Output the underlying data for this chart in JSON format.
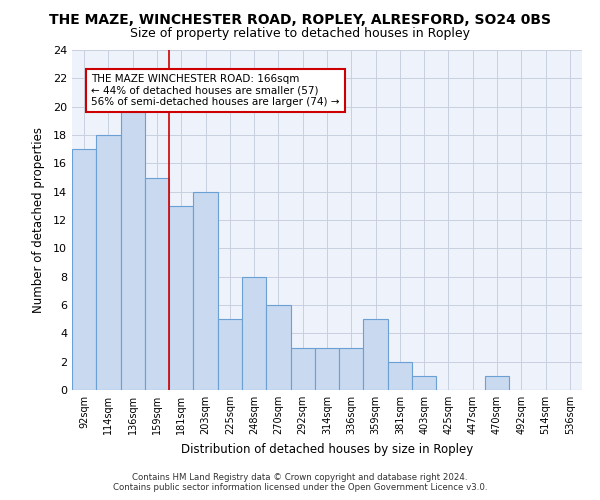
{
  "title": "THE MAZE, WINCHESTER ROAD, ROPLEY, ALRESFORD, SO24 0BS",
  "subtitle": "Size of property relative to detached houses in Ropley",
  "xlabel": "Distribution of detached houses by size in Ropley",
  "ylabel": "Number of detached properties",
  "categories": [
    "92sqm",
    "114sqm",
    "136sqm",
    "159sqm",
    "181sqm",
    "203sqm",
    "225sqm",
    "248sqm",
    "270sqm",
    "292sqm",
    "314sqm",
    "336sqm",
    "359sqm",
    "381sqm",
    "403sqm",
    "425sqm",
    "447sqm",
    "470sqm",
    "492sqm",
    "514sqm",
    "536sqm"
  ],
  "values": [
    17,
    18,
    20,
    15,
    13,
    14,
    5,
    8,
    6,
    3,
    3,
    3,
    5,
    2,
    1,
    0,
    0,
    1,
    0,
    0,
    0
  ],
  "bar_color": "#c8d9f0",
  "bar_edge_color": "#6aa0d4",
  "grid_color": "#c8d0e0",
  "background_color": "#eef2fb",
  "ylim": [
    0,
    24
  ],
  "yticks": [
    0,
    2,
    4,
    6,
    8,
    10,
    12,
    14,
    16,
    18,
    20,
    22,
    24
  ],
  "property_line_x": 3.5,
  "property_line_color": "#cc0000",
  "annotation_text_line1": "THE MAZE WINCHESTER ROAD: 166sqm",
  "annotation_text_line2": "← 44% of detached houses are smaller (57)",
  "annotation_text_line3": "56% of semi-detached houses are larger (74) →",
  "annotation_box_color": "#ffffff",
  "annotation_box_edge": "#cc0000",
  "footer_line1": "Contains HM Land Registry data © Crown copyright and database right 2024.",
  "footer_line2": "Contains public sector information licensed under the Open Government Licence v3.0."
}
